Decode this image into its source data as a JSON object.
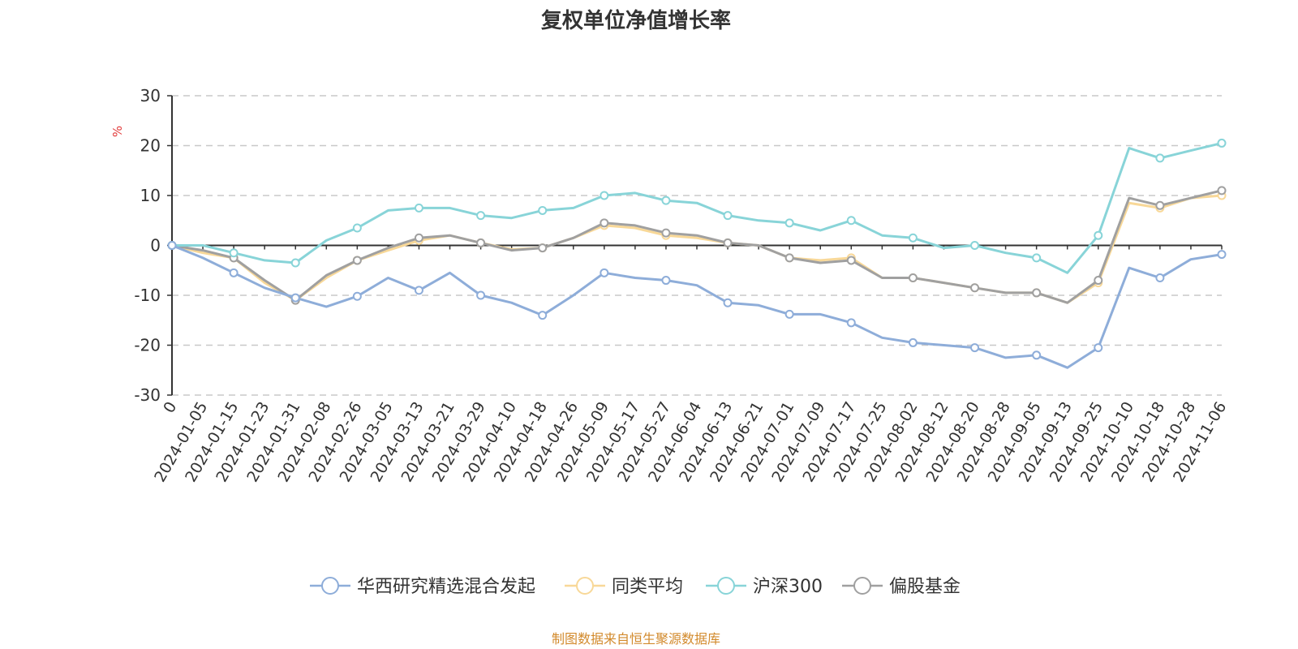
{
  "chart_data": {
    "type": "line",
    "title": "复权单位净值增长率",
    "ylabel": "%",
    "ylim": [
      -30,
      30
    ],
    "yticks": [
      -30,
      -20,
      -10,
      0,
      10,
      20,
      30
    ],
    "grid": true,
    "legend_position": "bottom",
    "categories": [
      "0",
      "2024-01-05",
      "2024-01-15",
      "2024-01-23",
      "2024-01-31",
      "2024-02-08",
      "2024-02-26",
      "2024-03-05",
      "2024-03-13",
      "2024-03-21",
      "2024-03-29",
      "2024-04-10",
      "2024-04-18",
      "2024-04-26",
      "2024-05-09",
      "2024-05-17",
      "2024-05-27",
      "2024-06-04",
      "2024-06-13",
      "2024-06-21",
      "2024-07-01",
      "2024-07-09",
      "2024-07-17",
      "2024-07-25",
      "2024-08-02",
      "2024-08-12",
      "2024-08-20",
      "2024-08-28",
      "2024-09-05",
      "2024-09-13",
      "2024-09-25",
      "2024-10-10",
      "2024-10-18",
      "2024-10-28",
      "2024-11-06"
    ],
    "series": [
      {
        "name": "华西研究精选混合发起",
        "color": "#8eadd9",
        "values": [
          0,
          -2.5,
          -5.5,
          -8.5,
          -10.5,
          -12.3,
          -10.2,
          -6.5,
          -9,
          -5.5,
          -10,
          -11.5,
          -14,
          -10,
          -5.5,
          -6.5,
          -7,
          -8,
          -11.5,
          -12,
          -13.8,
          -13.8,
          -15.5,
          -18.5,
          -19.5,
          -20,
          -20.5,
          -22.5,
          -22,
          -24.5,
          -20.5,
          -4.5,
          -6.5,
          -2.8,
          -1.8
        ]
      },
      {
        "name": "同类平均",
        "color": "#f8d898",
        "values": [
          0,
          -1.5,
          -2.5,
          -7.5,
          -11,
          -6.5,
          -3,
          -1,
          1,
          2,
          0.5,
          -0.8,
          -0.5,
          1.5,
          4,
          3.5,
          2,
          1.5,
          0.5,
          0,
          -2.5,
          -3,
          -2.5,
          -6.5,
          -6.5,
          -7.5,
          -8.5,
          -9.5,
          -9.5,
          -11.5,
          -7.5,
          8.5,
          7.5,
          9.5,
          10
        ]
      },
      {
        "name": "沪深300",
        "color": "#88d4d8",
        "values": [
          0,
          0,
          -1.5,
          -3,
          -3.5,
          1,
          3.5,
          7,
          7.5,
          7.5,
          6,
          5.5,
          7,
          7.5,
          10,
          10.5,
          9,
          8.5,
          6,
          5,
          4.5,
          3,
          5,
          2,
          1.5,
          -0.5,
          0,
          -1.5,
          -2.5,
          -5.5,
          2,
          19.5,
          17.5,
          19,
          20.5
        ]
      },
      {
        "name": "偏股基金",
        "color": "#a0a0a0",
        "values": [
          0,
          -1,
          -2.5,
          -7,
          -11,
          -6,
          -3,
          -0.5,
          1.5,
          2,
          0.5,
          -1,
          -0.5,
          1.5,
          4.5,
          4,
          2.5,
          2,
          0.5,
          0,
          -2.5,
          -3.5,
          -3,
          -6.5,
          -6.5,
          -7.5,
          -8.5,
          -9.5,
          -9.5,
          -11.5,
          -7,
          9.5,
          8,
          9.5,
          11
        ]
      }
    ],
    "legend": [
      "华西研究精选混合发起",
      "同类平均",
      "沪深300",
      "偏股基金"
    ],
    "source": "制图数据来自恒生聚源数据库"
  }
}
